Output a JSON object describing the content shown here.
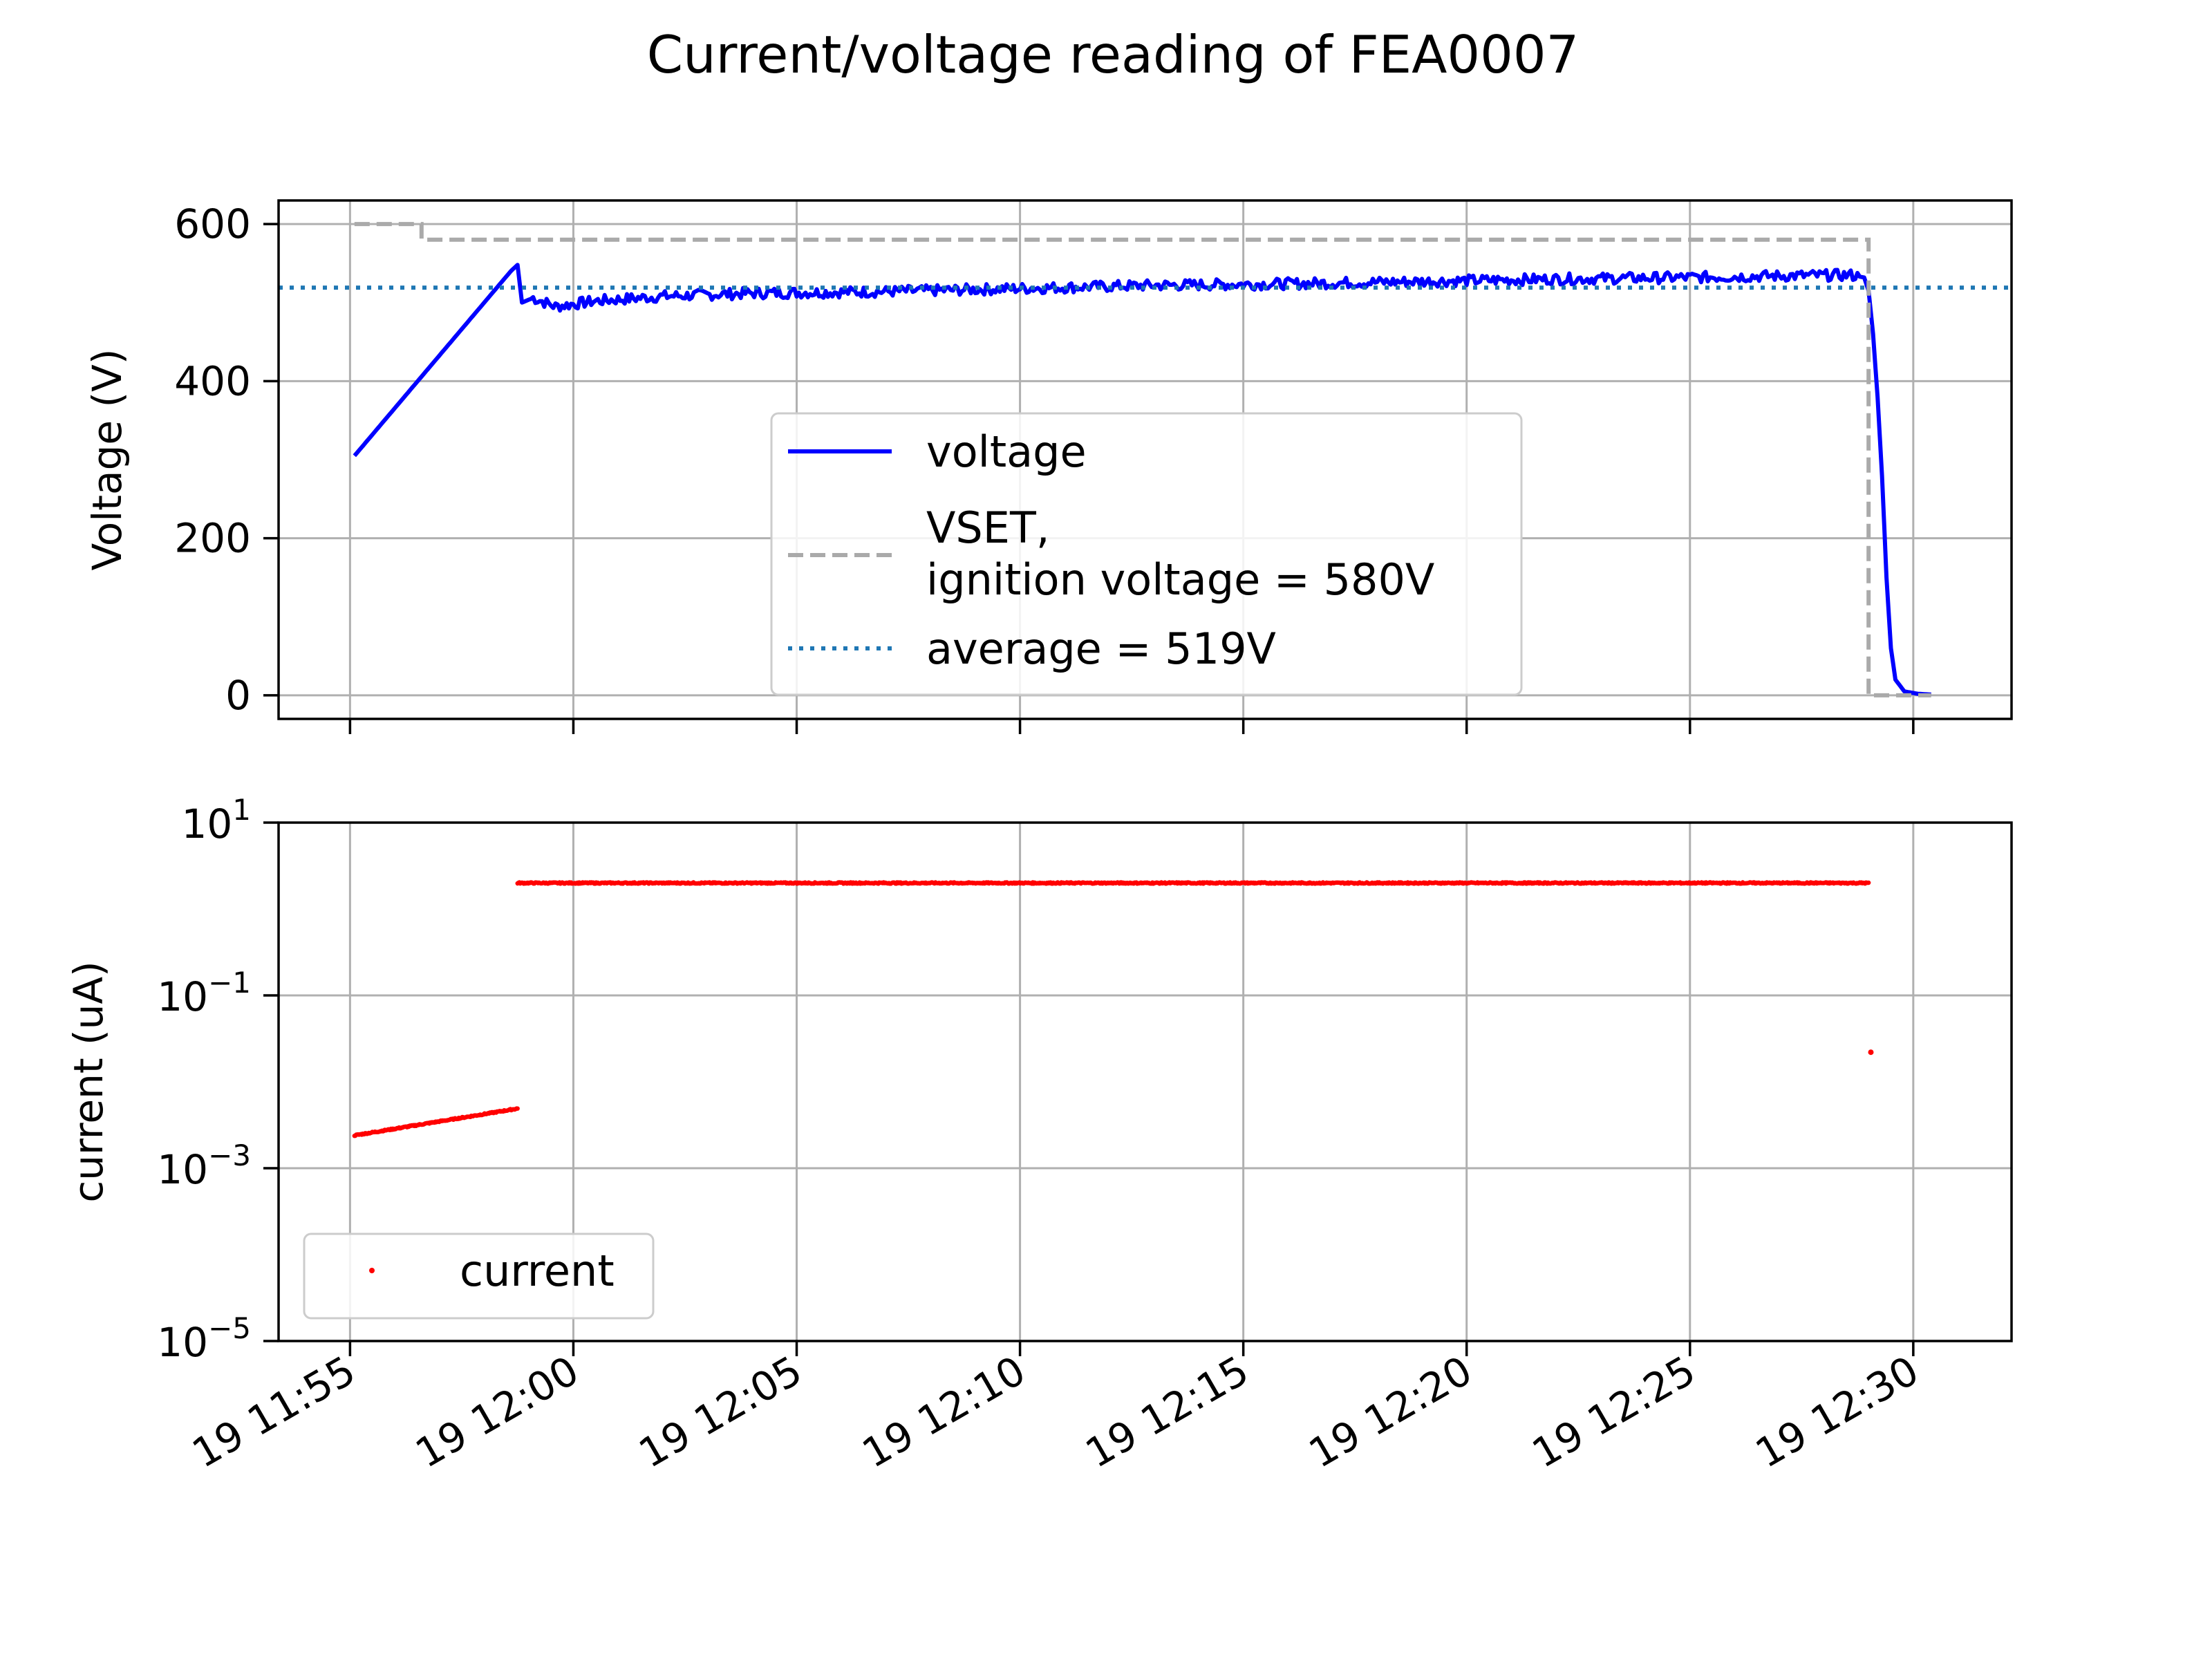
{
  "chart_data": {
    "title": "Current/voltage reading of FEA0007",
    "x_ticks": [
      "19 11:55",
      "19 12:00",
      "19 12:05",
      "19 12:10",
      "19 12:15",
      "19 12:20",
      "19 12:25",
      "19 12:30"
    ],
    "x_tick_minutes": [
      0,
      5,
      10,
      15,
      20,
      25,
      30,
      35
    ],
    "x_range_minutes": [
      -1.6,
      37.2
    ],
    "panels": [
      {
        "type": "line",
        "ylabel": "Voltage (V)",
        "ylim": [
          -30,
          630
        ],
        "y_ticks": [
          0,
          200,
          400,
          600
        ],
        "grid": true,
        "legend_position": "center",
        "series": [
          {
            "name": "voltage",
            "style": "solid",
            "color": "#0000ff",
            "points": [
              [
                0.1,
                305
              ],
              [
                3.6,
                540
              ],
              [
                3.75,
                548
              ],
              [
                3.85,
                500
              ],
              [
                4.1,
                506
              ],
              [
                4.6,
                495
              ],
              [
                5.5,
                502
              ],
              [
                7,
                508
              ],
              [
                9,
                512
              ],
              [
                12,
                514
              ],
              [
                15,
                518
              ],
              [
                18,
                522
              ],
              [
                21,
                524
              ],
              [
                24,
                527
              ],
              [
                27,
                530
              ],
              [
                30,
                532
              ],
              [
                32,
                534
              ],
              [
                33.6,
                535
              ],
              [
                33.9,
                532
              ],
              [
                34.0,
                515
              ],
              [
                34.1,
                460
              ],
              [
                34.2,
                380
              ],
              [
                34.3,
                280
              ],
              [
                34.4,
                150
              ],
              [
                34.5,
                60
              ],
              [
                34.6,
                20
              ],
              [
                34.8,
                5
              ],
              [
                35.1,
                2
              ],
              [
                35.4,
                1
              ]
            ]
          },
          {
            "name": "VSET,\nignition voltage = 580V",
            "style": "dashed",
            "color": "#aaaaaa",
            "points": [
              [
                0.1,
                600
              ],
              [
                1.6,
                600
              ],
              [
                1.6,
                580
              ],
              [
                34.0,
                580
              ],
              [
                34.0,
                0
              ],
              [
                35.4,
                0
              ]
            ]
          },
          {
            "name": "average = 519V",
            "style": "dotted",
            "color": "#1f77b4",
            "points": [
              [
                -1.6,
                519
              ],
              [
                37.2,
                519
              ]
            ]
          }
        ]
      },
      {
        "type": "scatter",
        "ylabel": "current (uA)",
        "y_scale": "log",
        "ylim_exponent": [
          -5,
          1
        ],
        "y_tick_exponents": [
          1,
          -1,
          -3,
          -5
        ],
        "grid": true,
        "legend_position": "bottom-left",
        "series": [
          {
            "name": "current",
            "color": "#ff0000",
            "segments": [
              {
                "x": [
                  0.1,
                  3.75
                ],
                "y": [
                  0.0024,
                  0.0049
                ]
              },
              {
                "x": [
                  3.75,
                  34.0
                ],
                "y": [
                  2.0,
                  2.0
                ]
              }
            ],
            "isolated_points": [
              [
                34.05,
                0.022
              ]
            ]
          }
        ]
      }
    ]
  }
}
